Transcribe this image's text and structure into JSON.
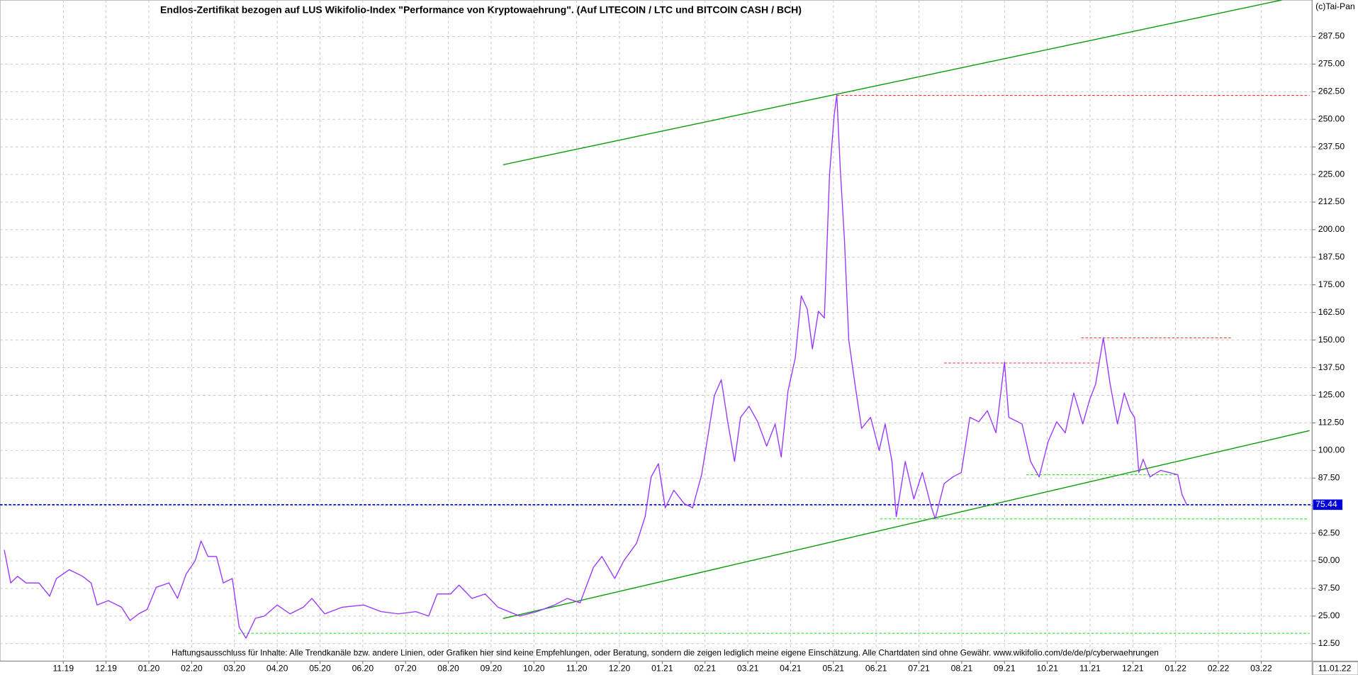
{
  "chart_data": {
    "type": "line",
    "title": "Endlos-Zertifikat bezogen auf LUS Wikifolio-Index \"Performance von Kryptowaehrung\". (Auf LITECOIN / LTC und BITCOIN CASH / BCH)",
    "copyright": "(c)Tai-Pan",
    "disclaimer": "Haftungsausschluss für Inhalte: Alle Trendkanäle bzw. andere Linien, oder Grafiken hier sind keine Empfehlungen, oder Beratung, sondern die zeigen lediglich meine eigene Einschätzung. Alle Chartdaten sind ohne Gewähr.  www.wikifolio.com/de/de/p/cyberwaehrungen",
    "date_label": "11.01.22",
    "color": "#9933ff",
    "grid": true,
    "xlim": [
      -1.48,
      29.19
    ],
    "ylim": [
      4.6,
      304
    ],
    "xticks": [
      {
        "value": 0,
        "label": "11.19"
      },
      {
        "value": 1,
        "label": "12.19"
      },
      {
        "value": 2,
        "label": "01.20"
      },
      {
        "value": 3,
        "label": "02.20"
      },
      {
        "value": 4,
        "label": "03.20"
      },
      {
        "value": 5,
        "label": "04.20"
      },
      {
        "value": 6,
        "label": "05.20"
      },
      {
        "value": 7,
        "label": "06.20"
      },
      {
        "value": 8,
        "label": "07.20"
      },
      {
        "value": 9,
        "label": "08.20"
      },
      {
        "value": 10,
        "label": "09.20"
      },
      {
        "value": 11,
        "label": "10.20"
      },
      {
        "value": 12,
        "label": "11.20"
      },
      {
        "value": 13,
        "label": "12.20"
      },
      {
        "value": 14,
        "label": "01.21"
      },
      {
        "value": 15,
        "label": "02.21"
      },
      {
        "value": 16,
        "label": "03.21"
      },
      {
        "value": 17,
        "label": "04.21"
      },
      {
        "value": 18,
        "label": "05.21"
      },
      {
        "value": 19,
        "label": "06.21"
      },
      {
        "value": 20,
        "label": "07.21"
      },
      {
        "value": 21,
        "label": "08.21"
      },
      {
        "value": 22,
        "label": "09.21"
      },
      {
        "value": 23,
        "label": "10.21"
      },
      {
        "value": 24,
        "label": "11.21"
      },
      {
        "value": 25,
        "label": "12.21"
      },
      {
        "value": 26,
        "label": "01.22"
      },
      {
        "value": 27,
        "label": "02.22"
      },
      {
        "value": 28,
        "label": "03.22"
      }
    ],
    "yticks": [
      {
        "value": 12.5,
        "label": "12.50"
      },
      {
        "value": 25,
        "label": "25.00"
      },
      {
        "value": 37.5,
        "label": "37.50"
      },
      {
        "value": 50,
        "label": "50.00"
      },
      {
        "value": 62.5,
        "label": "62.50"
      },
      {
        "value": 75,
        "label": "75.00"
      },
      {
        "value": 87.5,
        "label": "87.50"
      },
      {
        "value": 100,
        "label": "100.00"
      },
      {
        "value": 112.5,
        "label": "112.50"
      },
      {
        "value": 125,
        "label": "125.00"
      },
      {
        "value": 137.5,
        "label": "137.50"
      },
      {
        "value": 150,
        "label": "150.00"
      },
      {
        "value": 162.5,
        "label": "162.50"
      },
      {
        "value": 175,
        "label": "175.00"
      },
      {
        "value": 187.5,
        "label": "187.50"
      },
      {
        "value": 200,
        "label": "200.00"
      },
      {
        "value": 212.5,
        "label": "212.50"
      },
      {
        "value": 225,
        "label": "225.00"
      },
      {
        "value": 237.5,
        "label": "237.50"
      },
      {
        "value": 250,
        "label": "250.00"
      },
      {
        "value": 262.5,
        "label": "262.50"
      },
      {
        "value": 275,
        "label": "275.00"
      },
      {
        "value": 287.5,
        "label": "287.50"
      }
    ],
    "x": [
      -1.38,
      -1.23,
      -1.07,
      -0.87,
      -0.57,
      -0.32,
      -0.16,
      0.14,
      0.45,
      0.65,
      0.79,
      1.05,
      1.36,
      1.56,
      1.76,
      1.96,
      2.17,
      2.47,
      2.67,
      2.87,
      3.08,
      3.22,
      3.38,
      3.58,
      3.74,
      3.95,
      4.11,
      4.27,
      4.49,
      4.7,
      5.0,
      5.3,
      5.61,
      5.81,
      6.11,
      6.52,
      7.02,
      7.43,
      7.83,
      8.24,
      8.54,
      8.74,
      9.05,
      9.25,
      9.55,
      9.86,
      10.16,
      10.67,
      11.07,
      11.48,
      11.78,
      12.08,
      12.39,
      12.59,
      12.89,
      13.1,
      13.4,
      13.6,
      13.74,
      13.91,
      14.07,
      14.27,
      14.51,
      14.71,
      14.92,
      15.08,
      15.22,
      15.38,
      15.53,
      15.69,
      15.83,
      16.03,
      16.23,
      16.44,
      16.64,
      16.78,
      16.94,
      17.11,
      17.25,
      17.39,
      17.51,
      17.65,
      17.79,
      17.91,
      18.02,
      18.08,
      18.16,
      18.26,
      18.36,
      18.52,
      18.66,
      18.87,
      19.07,
      19.21,
      19.37,
      19.47,
      19.68,
      19.88,
      20.08,
      20.28,
      20.38,
      20.59,
      20.79,
      20.99,
      21.19,
      21.4,
      21.6,
      21.8,
      22.0,
      22.1,
      22.41,
      22.61,
      22.81,
      23.02,
      23.22,
      23.42,
      23.62,
      23.83,
      23.99,
      24.13,
      24.31,
      24.47,
      24.64,
      24.8,
      24.94,
      25.04,
      25.14,
      25.24,
      25.4,
      25.65,
      25.85,
      26.05,
      26.15,
      26.26
    ],
    "values": [
      55,
      40,
      43,
      40,
      40,
      34,
      42,
      46,
      43,
      40,
      30,
      32,
      29,
      23,
      26,
      28,
      38,
      40,
      33,
      44,
      50,
      59,
      52,
      52,
      40,
      42,
      20,
      15,
      24,
      25,
      30,
      26,
      29,
      33,
      26,
      29,
      30,
      27,
      26,
      27,
      25,
      35,
      35,
      39,
      33,
      35,
      29,
      25,
      27,
      30,
      33,
      31,
      47,
      52,
      42,
      50,
      58,
      70,
      88,
      94,
      74,
      82,
      76,
      74,
      89,
      108,
      125,
      132,
      113,
      95,
      115,
      120,
      113,
      102,
      112,
      97,
      127,
      142,
      170,
      164,
      146,
      163,
      160,
      225,
      252,
      261,
      228,
      195,
      150,
      128,
      110,
      115,
      100,
      112,
      95,
      70,
      95,
      78,
      90,
      75,
      69,
      85,
      88,
      90,
      115,
      113,
      118,
      108,
      140,
      115,
      112,
      95,
      88,
      104,
      113,
      108,
      126,
      112,
      123,
      130,
      151,
      130,
      112,
      126,
      118,
      115,
      90,
      96,
      88,
      91,
      90,
      89,
      80,
      75.44
    ],
    "current": {
      "value": 75.44,
      "color": "#0000dd"
    },
    "trend_lines": [
      {
        "color": "#009900",
        "dashed": false,
        "points": [
          [
            10.28,
            229.4
          ],
          [
            28.48,
            304
          ]
        ]
      },
      {
        "color": "#009900",
        "dashed": false,
        "points": [
          [
            10.28,
            23.9
          ],
          [
            29.13,
            109.0
          ]
        ]
      },
      {
        "color": "#ff3333",
        "dashed": true,
        "points": [
          [
            18.08,
            260.8
          ],
          [
            29.13,
            260.8
          ]
        ]
      },
      {
        "color": "#ff3333",
        "dashed": true,
        "points": [
          [
            20.59,
            139.6
          ],
          [
            24.23,
            139.6
          ]
        ]
      },
      {
        "color": "#ff3333",
        "dashed": true,
        "points": [
          [
            23.79,
            151.0
          ],
          [
            27.31,
            151.0
          ]
        ]
      },
      {
        "color": "#33dd33",
        "dashed": true,
        "points": [
          [
            22.51,
            89.0
          ],
          [
            26.05,
            89.0
          ]
        ]
      },
      {
        "color": "#33dd33",
        "dashed": true,
        "points": [
          [
            19.09,
            69.0
          ],
          [
            29.09,
            69.0
          ]
        ]
      },
      {
        "color": "#33dd33",
        "dashed": true,
        "points": [
          [
            4.09,
            17.2
          ],
          [
            29.13,
            17.2
          ]
        ]
      }
    ]
  }
}
